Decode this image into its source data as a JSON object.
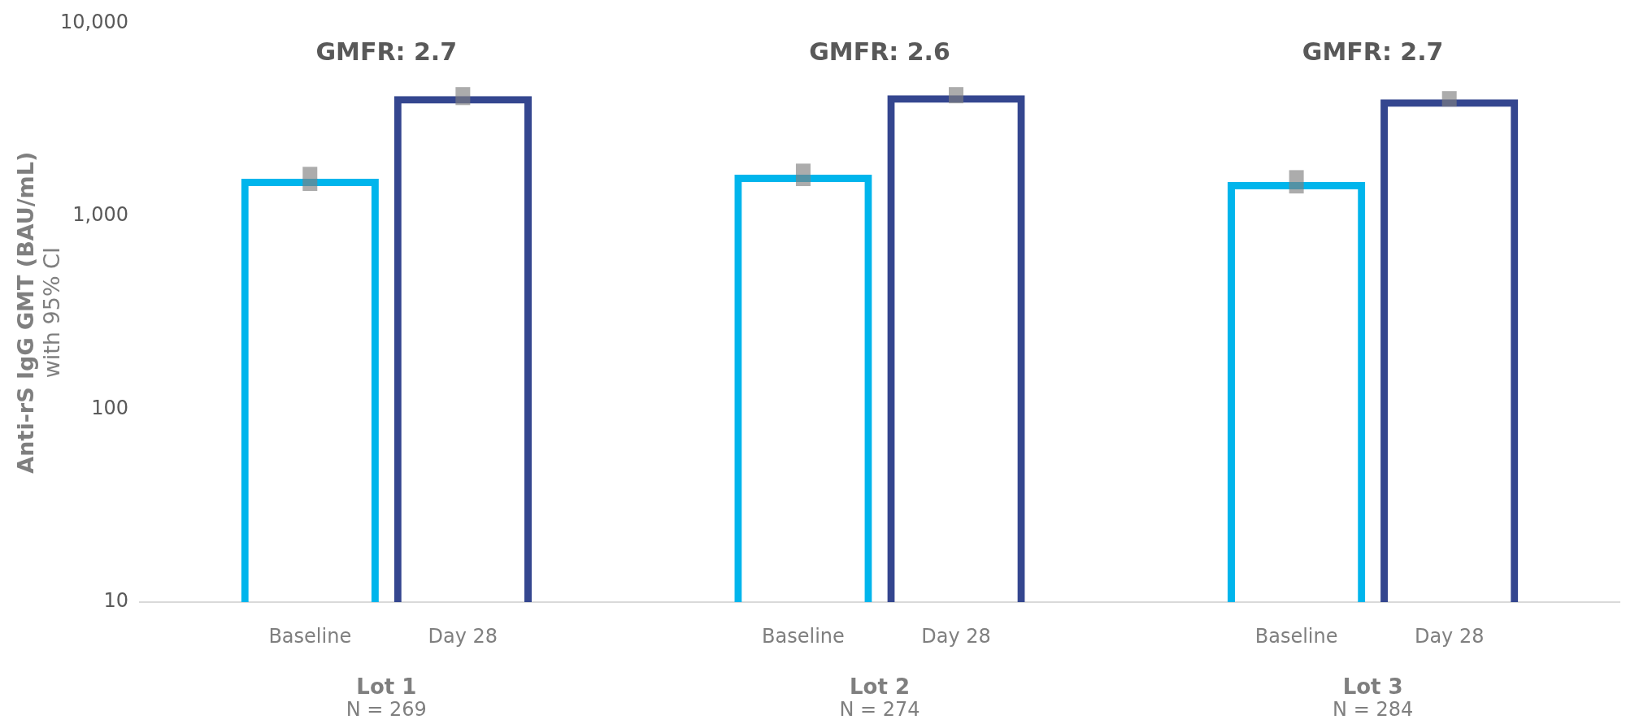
{
  "chart_data": {
    "type": "bar",
    "ylabel": "Anti-rS IgG GMT (BAU/mL)\nwith 95% CI",
    "categories": [
      "Lot 1",
      "Lot 2",
      "Lot 3"
    ],
    "series": [
      {
        "name": "Baseline",
        "color": "#00b5ec",
        "values": [
          1560,
          1640,
          1500
        ],
        "errors": [
          [
            1350,
            1800
          ],
          [
            1430,
            1870
          ],
          [
            1310,
            1730
          ]
        ]
      },
      {
        "name": "Day 28",
        "color": "#34468f",
        "values": [
          4190,
          4230,
          4030
        ],
        "errors": [
          [
            3760,
            4660
          ],
          [
            3840,
            4660
          ],
          [
            3690,
            4440
          ]
        ]
      }
    ],
    "log": "y",
    "ylim": [
      10,
      10000
    ],
    "yticks": [
      {
        "value": 10,
        "label": "10"
      },
      {
        "value": 100,
        "label": "100"
      },
      {
        "value": 1000,
        "label": "1,000"
      },
      {
        "value": 10000,
        "label": "10,000"
      }
    ],
    "grid": false,
    "legend": false,
    "annotations": [
      "GMFR: 2.7",
      "GMFR: 2.6",
      "GMFR: 2.7",
      "N = 269",
      "N = 274",
      "N = 284"
    ]
  }
}
